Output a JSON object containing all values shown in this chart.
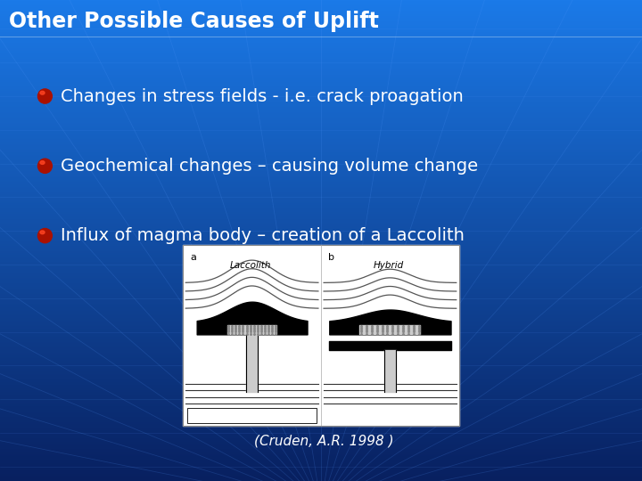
{
  "title": "Other Possible Causes of Uplift",
  "bullet_points": [
    "Changes in stress fields - i.e. crack proagation",
    "Geochemical changes – causing volume change",
    "Influx of magma body – creation of a Laccolith"
  ],
  "caption": "(Cruden, A.R. 1998 )",
  "title_color": "#FFFFFF",
  "title_fontsize": 17,
  "bullet_fontsize": 14,
  "bullet_color": "#FFFFFF",
  "bullet_marker_color": "#CC2200",
  "caption_color": "#FFFFFF",
  "caption_fontsize": 11,
  "bg_top_color": "#1B7AE8",
  "bg_bottom_color": "#0A2A70",
  "grid_line_color": "#5599FF",
  "title_bg_color": "#1060CC"
}
